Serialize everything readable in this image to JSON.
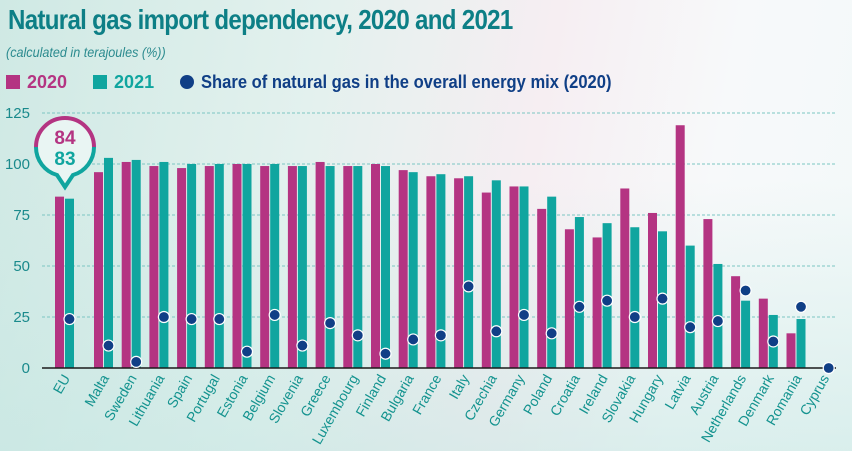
{
  "header": {
    "title": "Natural gas import dependency, 2020 and 2021",
    "subtitle": "(calculated in terajoules (%))"
  },
  "legend": {
    "items": [
      {
        "label": "2020",
        "color": "#b43482"
      },
      {
        "label": "2021",
        "color": "#10a59f"
      },
      {
        "label": "Share of natural gas in the overall energy mix (2020)",
        "color": "#103f86"
      }
    ]
  },
  "callout": {
    "category": "EU",
    "value_2020": "84",
    "value_2021": "83"
  },
  "chart_data": {
    "type": "bar",
    "title": "Natural gas import dependency, 2020 and 2021",
    "subtitle": "(calculated in terajoules (%))",
    "xlabel": "",
    "ylabel": "",
    "ylim": [
      0,
      125
    ],
    "yticks": [
      0,
      25,
      50,
      75,
      100,
      125
    ],
    "grid": true,
    "legend_position": "top-left",
    "categories": [
      "EU",
      "Malta",
      "Sweden",
      "Lithuania",
      "Spain",
      "Portugal",
      "Estonia",
      "Belgium",
      "Slovenia",
      "Greece",
      "Luxembourg",
      "Finland",
      "Bulgaria",
      "France",
      "Italy",
      "Czechia",
      "Germany",
      "Poland",
      "Croatia",
      "Ireland",
      "Slovakia",
      "Hungary",
      "Latvia",
      "Austria",
      "Netherlands",
      "Denmark",
      "Romania",
      "Cyprus"
    ],
    "series": [
      {
        "name": "2020",
        "kind": "bar",
        "color": "#b43482",
        "values": [
          84,
          96,
          101,
          99,
          98,
          99,
          100,
          99,
          99,
          101,
          99,
          100,
          97,
          94,
          93,
          86,
          89,
          78,
          68,
          64,
          88,
          76,
          119,
          73,
          45,
          34,
          17,
          0
        ]
      },
      {
        "name": "2021",
        "kind": "bar",
        "color": "#10a59f",
        "values": [
          83,
          103,
          102,
          101,
          100,
          100,
          100,
          100,
          99,
          99,
          99,
          99,
          96,
          95,
          94,
          92,
          89,
          84,
          74,
          71,
          69,
          67,
          60,
          51,
          33,
          26,
          24,
          0
        ]
      },
      {
        "name": "Share of natural gas in the overall energy mix (2020)",
        "kind": "scatter",
        "color": "#103f86",
        "values": [
          24,
          11,
          3,
          25,
          24,
          24,
          8,
          26,
          11,
          22,
          16,
          7,
          14,
          16,
          40,
          18,
          26,
          17,
          30,
          33,
          25,
          34,
          20,
          23,
          38,
          13,
          30,
          0
        ]
      }
    ]
  }
}
